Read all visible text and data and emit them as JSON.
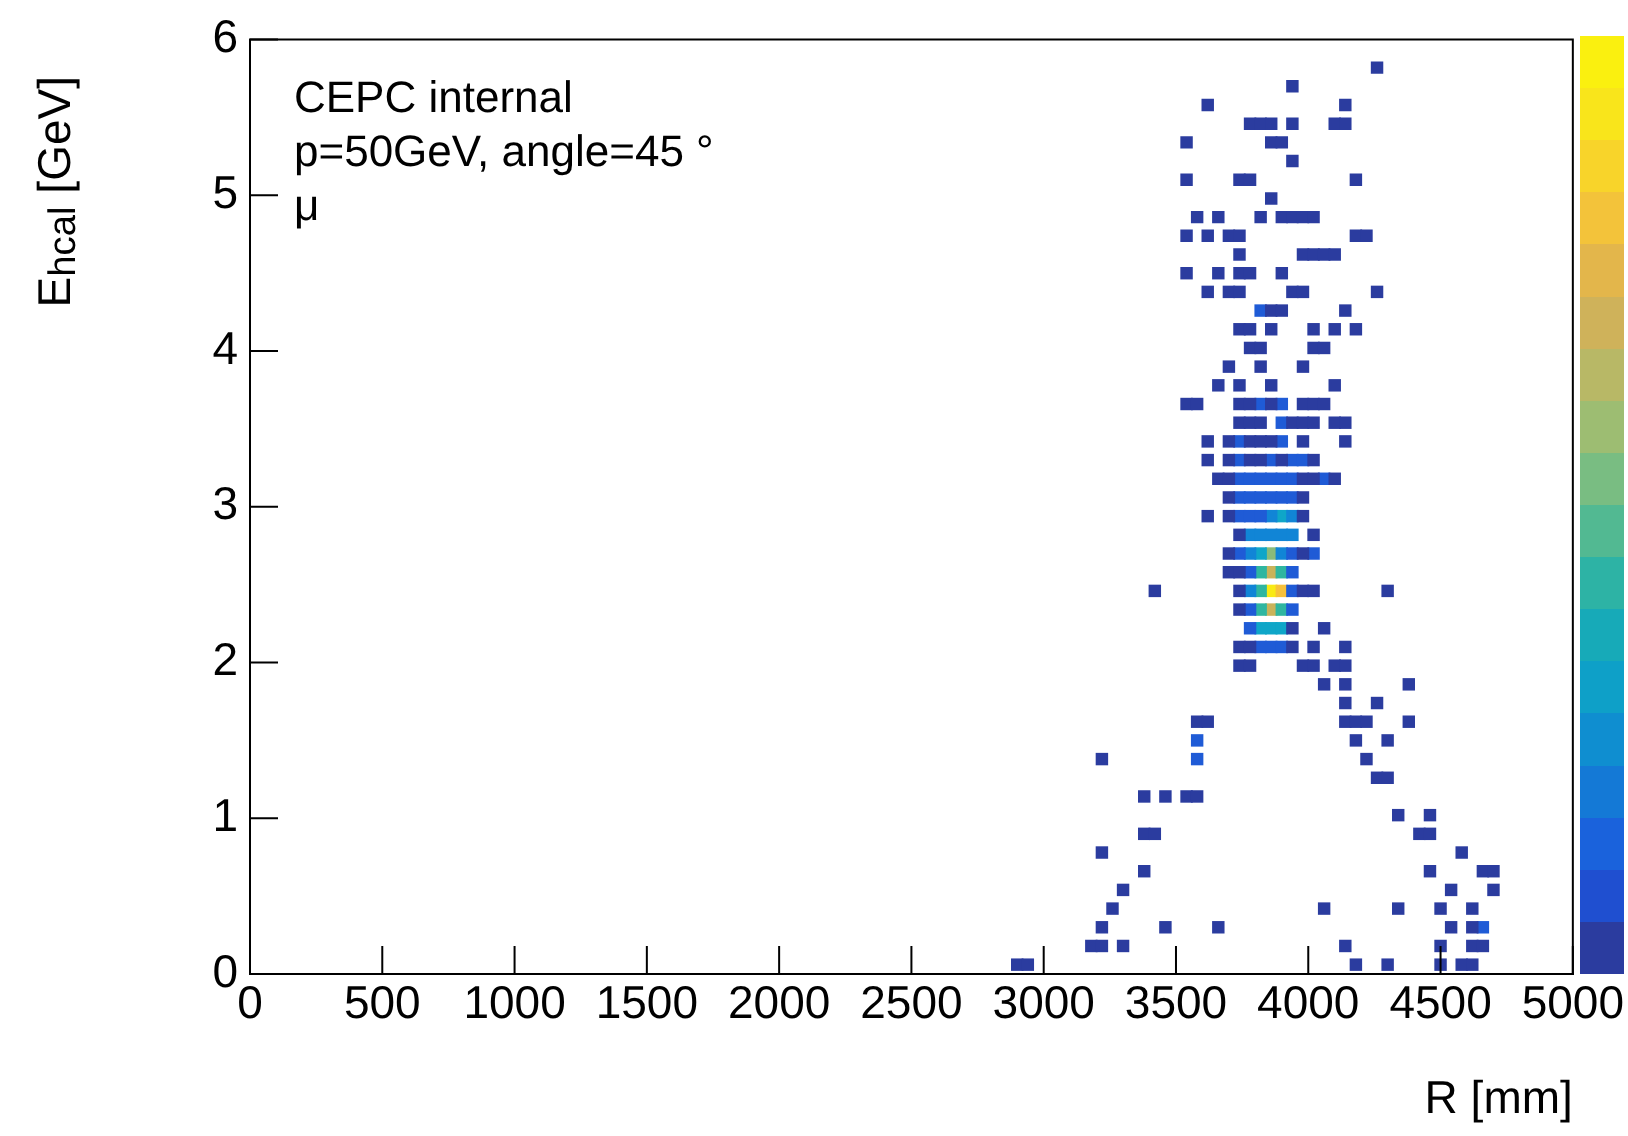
{
  "chart_data": {
    "type": "scatter",
    "xlabel": "R [mm]",
    "ylabel": "E$_{hcal}$ [GeV]",
    "annotations": [
      "CEPC internal",
      "p=50GeV, angle=45 °",
      "μ"
    ],
    "xlim": [
      0,
      5000
    ],
    "xticks": [
      0,
      500,
      1000,
      1500,
      2000,
      2500,
      3000,
      3500,
      4000,
      4500,
      5000
    ],
    "ylim": [
      0,
      6
    ],
    "yticks": [
      0,
      1,
      2,
      3,
      4,
      5,
      6
    ],
    "grid": false,
    "legend": false,
    "marker": "square",
    "series": [
      {
        "color": "#2b3c9f",
        "x": [
          4260,
          3940,
          3620,
          4140,
          3780,
          3820,
          3860,
          3940,
          4100,
          4140,
          3540,
          3860,
          3900,
          3940,
          3540,
          3740,
          3780,
          4180,
          3860,
          3580,
          3660,
          3820,
          3900,
          3940,
          3980,
          4020,
          3540,
          3620,
          3700,
          3740,
          4180,
          4220,
          3740,
          3980,
          4020,
          4060,
          4100,
          3540,
          3660,
          3740,
          3780,
          3900,
          3620,
          3700,
          3740,
          3940,
          3980,
          4260,
          3860,
          3900,
          4140,
          3740,
          3780,
          3860,
          4020,
          4100,
          4180,
          3780,
          3820,
          4020,
          4060,
          3700,
          3820,
          3980,
          3660,
          3740,
          3860,
          4100,
          3540,
          3580,
          3740,
          3780,
          3860,
          3980,
          4020,
          4060,
          3740,
          3780,
          3820,
          3940,
          3980,
          4020,
          4100,
          4140,
          3620,
          3700,
          3780,
          3820,
          3860,
          3980,
          4140,
          3620,
          3700,
          3780,
          3820,
          3900,
          4020,
          3660,
          3700,
          3980,
          4020,
          4100,
          3700,
          3980,
          3620,
          3700,
          3980,
          3740,
          4020,
          3700,
          3980,
          3700,
          3740,
          3420,
          3740,
          3980,
          4020,
          4300,
          3740,
          3940,
          4060,
          3740,
          3780,
          3940,
          4020,
          4140,
          3740,
          3780,
          3980,
          4020,
          4100,
          4140,
          4060,
          4140,
          4380,
          4140,
          4260,
          3580,
          3620,
          4140,
          4180,
          4220,
          4380,
          4180,
          4300,
          3220,
          4220,
          4260,
          4300,
          3380,
          3460,
          3540,
          3580,
          4340,
          4460,
          3380,
          3420,
          4420,
          4460,
          3220,
          4580,
          3380,
          4460,
          4660,
          4700,
          3300,
          4540,
          4700,
          3260,
          4060,
          4340,
          4500,
          4620,
          3220,
          3460,
          3660,
          4540,
          4620,
          3180,
          3220,
          3300,
          4140,
          4500,
          4620,
          4660,
          2900,
          2940,
          4180,
          4300,
          4500,
          4580,
          4620
        ],
        "values": [
          5.82,
          5.7,
          5.58,
          5.58,
          5.46,
          5.46,
          5.46,
          5.46,
          5.46,
          5.46,
          5.34,
          5.34,
          5.34,
          5.22,
          5.1,
          5.1,
          5.1,
          5.1,
          4.98,
          4.86,
          4.86,
          4.86,
          4.86,
          4.86,
          4.86,
          4.86,
          4.74,
          4.74,
          4.74,
          4.74,
          4.74,
          4.74,
          4.62,
          4.62,
          4.62,
          4.62,
          4.62,
          4.5,
          4.5,
          4.5,
          4.5,
          4.5,
          4.38,
          4.38,
          4.38,
          4.38,
          4.38,
          4.38,
          4.26,
          4.26,
          4.26,
          4.14,
          4.14,
          4.14,
          4.14,
          4.14,
          4.14,
          4.02,
          4.02,
          4.02,
          4.02,
          3.9,
          3.9,
          3.9,
          3.78,
          3.78,
          3.78,
          3.78,
          3.66,
          3.66,
          3.66,
          3.66,
          3.66,
          3.66,
          3.66,
          3.66,
          3.54,
          3.54,
          3.54,
          3.54,
          3.54,
          3.54,
          3.54,
          3.54,
          3.42,
          3.42,
          3.42,
          3.42,
          3.42,
          3.42,
          3.42,
          3.3,
          3.3,
          3.3,
          3.3,
          3.3,
          3.3,
          3.18,
          3.18,
          3.18,
          3.18,
          3.18,
          3.06,
          3.06,
          2.94,
          2.94,
          2.94,
          2.82,
          2.82,
          2.7,
          2.7,
          2.58,
          2.58,
          2.46,
          2.46,
          2.46,
          2.46,
          2.46,
          2.34,
          2.22,
          2.22,
          2.1,
          2.1,
          2.1,
          2.1,
          2.1,
          1.98,
          1.98,
          1.98,
          1.98,
          1.98,
          1.98,
          1.86,
          1.86,
          1.86,
          1.74,
          1.74,
          1.62,
          1.62,
          1.62,
          1.62,
          1.62,
          1.62,
          1.5,
          1.5,
          1.38,
          1.38,
          1.26,
          1.26,
          1.14,
          1.14,
          1.14,
          1.14,
          1.02,
          1.02,
          0.9,
          0.9,
          0.9,
          0.9,
          0.78,
          0.78,
          0.66,
          0.66,
          0.66,
          0.66,
          0.54,
          0.54,
          0.54,
          0.42,
          0.42,
          0.42,
          0.42,
          0.42,
          0.3,
          0.3,
          0.3,
          0.3,
          0.3,
          0.18,
          0.18,
          0.18,
          0.18,
          0.18,
          0.18,
          0.18,
          0.06,
          0.06,
          0.06,
          0.06,
          0.06,
          0.06,
          0.06
        ]
      },
      {
        "color": "#1f5bd6",
        "x": [
          3820,
          3820,
          3900,
          3900,
          3740,
          3900,
          3740,
          3860,
          3940,
          3980,
          3740,
          3780,
          3820,
          3860,
          3900,
          3940,
          4060,
          3740,
          3780,
          3820,
          3860,
          3900,
          3940,
          3740,
          3780,
          3820,
          3740,
          3940,
          4020,
          3780,
          3940,
          3940,
          3780,
          3940,
          3780,
          3820,
          3860,
          3900,
          3580,
          3580,
          4660
        ],
        "values": [
          4.26,
          3.66,
          3.66,
          3.54,
          3.42,
          3.42,
          3.3,
          3.3,
          3.3,
          3.3,
          3.18,
          3.18,
          3.18,
          3.18,
          3.18,
          3.18,
          3.18,
          3.06,
          3.06,
          3.06,
          3.06,
          3.06,
          3.06,
          2.94,
          2.94,
          2.94,
          2.7,
          2.7,
          2.7,
          2.58,
          2.58,
          2.46,
          2.34,
          2.34,
          2.22,
          2.1,
          2.1,
          2.1,
          1.5,
          1.38,
          0.3
        ]
      },
      {
        "color": "#1185d6",
        "x": [
          3860,
          3940,
          3780,
          3820,
          3860,
          3900,
          3940,
          3780,
          3900,
          3780
        ],
        "values": [
          2.94,
          2.94,
          2.82,
          2.82,
          2.82,
          2.82,
          2.82,
          2.7,
          2.7,
          2.46
        ]
      },
      {
        "color": "#0fa6c8",
        "x": [
          3900,
          3820,
          3820,
          3860,
          3900
        ],
        "values": [
          2.94,
          2.7,
          2.22,
          2.22,
          2.22
        ]
      },
      {
        "color": "#2fb6a0",
        "x": [
          3820,
          3900,
          3820,
          3820,
          3900
        ],
        "values": [
          2.58,
          2.58,
          2.46,
          2.34,
          2.34
        ]
      },
      {
        "color": "#8abb7a",
        "x": [
          3860
        ],
        "values": [
          2.7
        ]
      },
      {
        "color": "#c9b35a",
        "x": [
          3860,
          3860
        ],
        "values": [
          2.58,
          2.34
        ]
      },
      {
        "color": "#f7c13a",
        "x": [
          3900
        ],
        "values": [
          2.46
        ]
      },
      {
        "color": "#f9ea14",
        "x": [
          3860
        ],
        "values": [
          2.46
        ]
      }
    ]
  }
}
